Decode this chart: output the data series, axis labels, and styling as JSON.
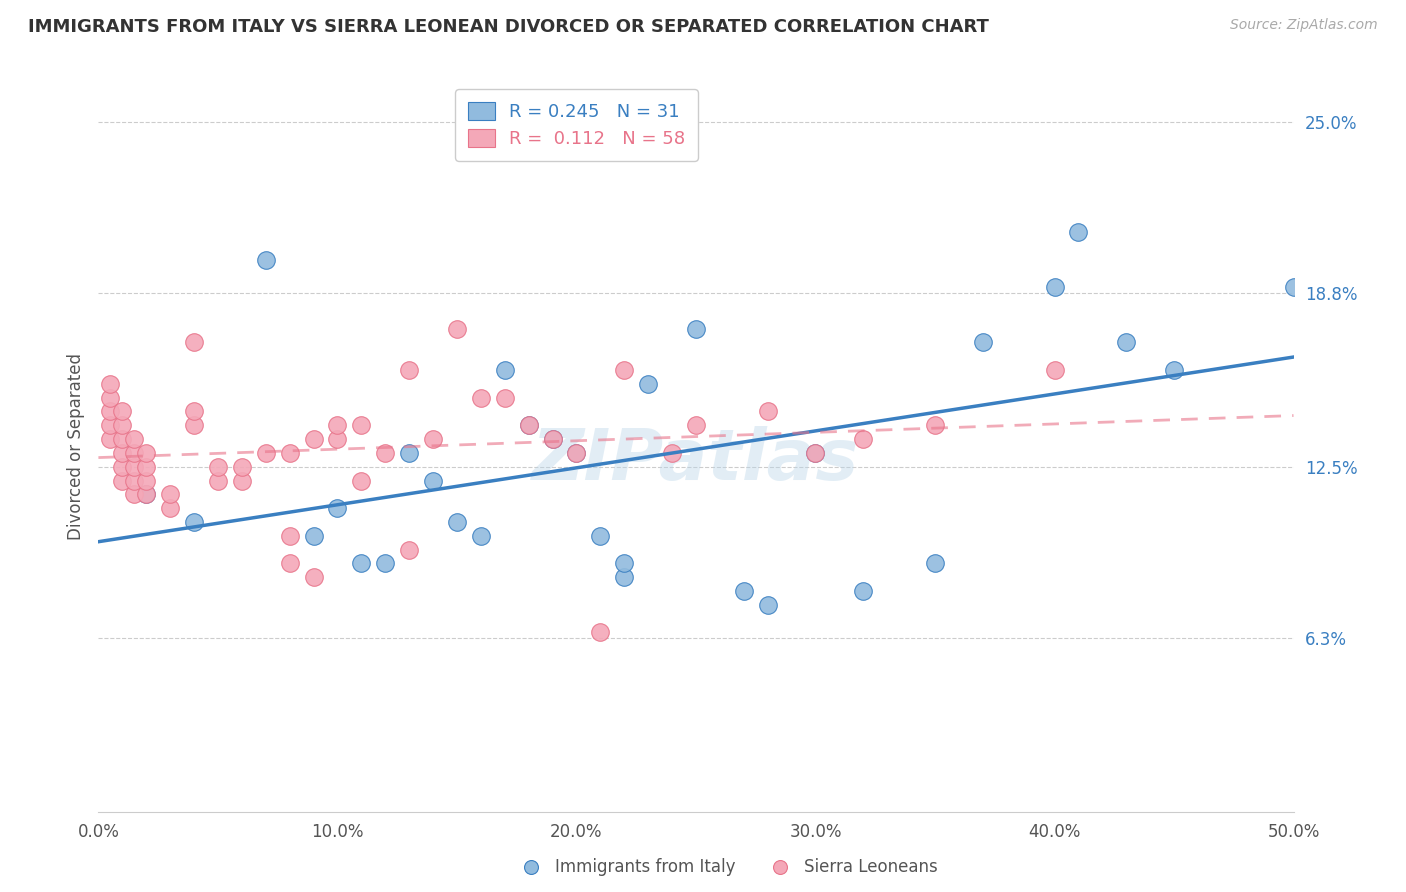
{
  "title": "IMMIGRANTS FROM ITALY VS SIERRA LEONEAN DIVORCED OR SEPARATED CORRELATION CHART",
  "source": "Source: ZipAtlas.com",
  "ylabel": "Divorced or Separated",
  "x_tick_labels": [
    "0.0%",
    "10.0%",
    "20.0%",
    "30.0%",
    "40.0%",
    "50.0%"
  ],
  "x_tick_values": [
    0.0,
    0.1,
    0.2,
    0.3,
    0.4,
    0.5
  ],
  "y_tick_labels": [
    "6.3%",
    "12.5%",
    "18.8%",
    "25.0%"
  ],
  "y_tick_values": [
    0.063,
    0.125,
    0.188,
    0.25
  ],
  "xlim": [
    0.0,
    0.5
  ],
  "ylim": [
    0.0,
    0.265
  ],
  "legend_label_blue": "Immigrants from Italy",
  "legend_label_pink": "Sierra Leoneans",
  "R_blue": 0.245,
  "N_blue": 31,
  "R_pink": 0.112,
  "N_pink": 58,
  "blue_color": "#91bbde",
  "pink_color": "#f4a8b8",
  "blue_line_color": "#3a7fc1",
  "pink_line_color": "#e8748a",
  "watermark": "ZIPatlas",
  "blue_x": [
    0.02,
    0.04,
    0.07,
    0.09,
    0.1,
    0.11,
    0.12,
    0.13,
    0.14,
    0.15,
    0.16,
    0.17,
    0.18,
    0.19,
    0.2,
    0.21,
    0.22,
    0.22,
    0.23,
    0.25,
    0.27,
    0.28,
    0.3,
    0.32,
    0.35,
    0.37,
    0.4,
    0.41,
    0.43,
    0.45,
    0.5
  ],
  "blue_y": [
    0.115,
    0.105,
    0.2,
    0.1,
    0.11,
    0.09,
    0.09,
    0.13,
    0.12,
    0.105,
    0.1,
    0.16,
    0.14,
    0.135,
    0.13,
    0.1,
    0.085,
    0.09,
    0.155,
    0.175,
    0.08,
    0.075,
    0.13,
    0.08,
    0.09,
    0.17,
    0.19,
    0.21,
    0.17,
    0.16,
    0.19
  ],
  "pink_x": [
    0.005,
    0.005,
    0.005,
    0.005,
    0.005,
    0.01,
    0.01,
    0.01,
    0.01,
    0.01,
    0.01,
    0.015,
    0.015,
    0.015,
    0.015,
    0.015,
    0.02,
    0.02,
    0.02,
    0.02,
    0.03,
    0.03,
    0.04,
    0.04,
    0.04,
    0.05,
    0.05,
    0.06,
    0.06,
    0.07,
    0.08,
    0.08,
    0.08,
    0.09,
    0.09,
    0.1,
    0.1,
    0.11,
    0.11,
    0.12,
    0.13,
    0.13,
    0.14,
    0.15,
    0.16,
    0.17,
    0.18,
    0.19,
    0.2,
    0.21,
    0.22,
    0.24,
    0.25,
    0.28,
    0.3,
    0.32,
    0.35,
    0.4
  ],
  "pink_y": [
    0.135,
    0.14,
    0.145,
    0.15,
    0.155,
    0.12,
    0.125,
    0.13,
    0.135,
    0.14,
    0.145,
    0.115,
    0.12,
    0.125,
    0.13,
    0.135,
    0.115,
    0.12,
    0.125,
    0.13,
    0.11,
    0.115,
    0.14,
    0.145,
    0.17,
    0.12,
    0.125,
    0.12,
    0.125,
    0.13,
    0.09,
    0.1,
    0.13,
    0.085,
    0.135,
    0.135,
    0.14,
    0.12,
    0.14,
    0.13,
    0.095,
    0.16,
    0.135,
    0.175,
    0.15,
    0.15,
    0.14,
    0.135,
    0.13,
    0.065,
    0.16,
    0.13,
    0.14,
    0.145,
    0.13,
    0.135,
    0.14,
    0.16
  ]
}
